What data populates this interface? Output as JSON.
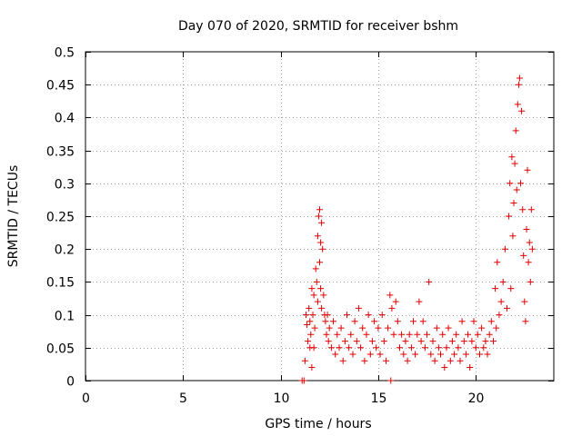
{
  "chart_data": {
    "type": "scatter",
    "title": "Day 070 of 2020, SRMTID for receiver bshm",
    "xlabel": "GPS time / hours",
    "ylabel": "SRMTID / TECUs",
    "xlim": [
      0,
      24
    ],
    "ylim": [
      0,
      0.5
    ],
    "xticks": [
      0,
      5,
      10,
      15,
      20
    ],
    "yticks": [
      0,
      0.05,
      0.1,
      0.15,
      0.2,
      0.25,
      0.3,
      0.35,
      0.4,
      0.45,
      0.5
    ],
    "xtick_labels": [
      "0",
      "5",
      "10",
      "15",
      "20"
    ],
    "ytick_labels": [
      "0",
      "0.05",
      "0.1",
      "0.15",
      "0.2",
      "0.25",
      "0.3",
      "0.35",
      "0.4",
      "0.45",
      "0.5"
    ],
    "grid": true,
    "marker": "+",
    "marker_color": "#e00000",
    "series": [
      {
        "name": "SRMTID",
        "points": [
          [
            11.1,
            0.0
          ],
          [
            11.2,
            0.0
          ],
          [
            11.25,
            0.03
          ],
          [
            11.3,
            0.1
          ],
          [
            11.35,
            0.085
          ],
          [
            11.4,
            0.06
          ],
          [
            11.45,
            0.11
          ],
          [
            11.5,
            0.05
          ],
          [
            11.5,
            0.09
          ],
          [
            11.55,
            0.07
          ],
          [
            11.6,
            0.14
          ],
          [
            11.6,
            0.02
          ],
          [
            11.65,
            0.1
          ],
          [
            11.7,
            0.05
          ],
          [
            11.7,
            0.13
          ],
          [
            11.75,
            0.08
          ],
          [
            11.8,
            0.17
          ],
          [
            11.85,
            0.15
          ],
          [
            11.9,
            0.22
          ],
          [
            11.9,
            0.12
          ],
          [
            11.95,
            0.25
          ],
          [
            12.0,
            0.26
          ],
          [
            12.0,
            0.18
          ],
          [
            12.05,
            0.21
          ],
          [
            12.05,
            0.14
          ],
          [
            12.1,
            0.24
          ],
          [
            12.1,
            0.11
          ],
          [
            12.15,
            0.2
          ],
          [
            12.2,
            0.13
          ],
          [
            12.25,
            0.1
          ],
          [
            12.3,
            0.09
          ],
          [
            12.35,
            0.07
          ],
          [
            12.4,
            0.1
          ],
          [
            12.45,
            0.06
          ],
          [
            12.5,
            0.08
          ],
          [
            12.6,
            0.05
          ],
          [
            12.7,
            0.09
          ],
          [
            12.8,
            0.04
          ],
          [
            12.9,
            0.07
          ],
          [
            13.0,
            0.05
          ],
          [
            13.1,
            0.08
          ],
          [
            13.2,
            0.03
          ],
          [
            13.3,
            0.06
          ],
          [
            13.4,
            0.1
          ],
          [
            13.5,
            0.05
          ],
          [
            13.6,
            0.07
          ],
          [
            13.7,
            0.04
          ],
          [
            13.8,
            0.09
          ],
          [
            13.9,
            0.06
          ],
          [
            14.0,
            0.11
          ],
          [
            14.1,
            0.05
          ],
          [
            14.2,
            0.08
          ],
          [
            14.3,
            0.03
          ],
          [
            14.4,
            0.07
          ],
          [
            14.5,
            0.1
          ],
          [
            14.6,
            0.04
          ],
          [
            14.7,
            0.06
          ],
          [
            14.8,
            0.09
          ],
          [
            14.9,
            0.05
          ],
          [
            15.0,
            0.08
          ],
          [
            15.1,
            0.04
          ],
          [
            15.2,
            0.1
          ],
          [
            15.3,
            0.06
          ],
          [
            15.4,
            0.03
          ],
          [
            15.5,
            0.08
          ],
          [
            15.6,
            0.13
          ],
          [
            15.65,
            0.0
          ],
          [
            15.7,
            0.11
          ],
          [
            15.8,
            0.07
          ],
          [
            15.9,
            0.12
          ],
          [
            16.0,
            0.09
          ],
          [
            16.1,
            0.05
          ],
          [
            16.2,
            0.07
          ],
          [
            16.3,
            0.04
          ],
          [
            16.4,
            0.06
          ],
          [
            16.5,
            0.03
          ],
          [
            16.6,
            0.07
          ],
          [
            16.7,
            0.05
          ],
          [
            16.8,
            0.09
          ],
          [
            16.9,
            0.04
          ],
          [
            17.0,
            0.07
          ],
          [
            17.1,
            0.12
          ],
          [
            17.2,
            0.06
          ],
          [
            17.3,
            0.09
          ],
          [
            17.4,
            0.05
          ],
          [
            17.5,
            0.07
          ],
          [
            17.6,
            0.15
          ],
          [
            17.7,
            0.04
          ],
          [
            17.8,
            0.06
          ],
          [
            17.9,
            0.03
          ],
          [
            18.0,
            0.08
          ],
          [
            18.1,
            0.05
          ],
          [
            18.2,
            0.04
          ],
          [
            18.3,
            0.07
          ],
          [
            18.4,
            0.02
          ],
          [
            18.5,
            0.05
          ],
          [
            18.6,
            0.08
          ],
          [
            18.7,
            0.03
          ],
          [
            18.8,
            0.06
          ],
          [
            18.9,
            0.04
          ],
          [
            19.0,
            0.07
          ],
          [
            19.1,
            0.05
          ],
          [
            19.2,
            0.03
          ],
          [
            19.3,
            0.09
          ],
          [
            19.4,
            0.06
          ],
          [
            19.5,
            0.04
          ],
          [
            19.6,
            0.07
          ],
          [
            19.7,
            0.02
          ],
          [
            19.8,
            0.06
          ],
          [
            19.9,
            0.09
          ],
          [
            20.0,
            0.05
          ],
          [
            20.1,
            0.07
          ],
          [
            20.2,
            0.04
          ],
          [
            20.3,
            0.08
          ],
          [
            20.4,
            0.05
          ],
          [
            20.5,
            0.06
          ],
          [
            20.6,
            0.04
          ],
          [
            20.7,
            0.07
          ],
          [
            20.8,
            0.09
          ],
          [
            20.9,
            0.06
          ],
          [
            21.0,
            0.14
          ],
          [
            21.05,
            0.08
          ],
          [
            21.1,
            0.18
          ],
          [
            21.2,
            0.1
          ],
          [
            21.3,
            0.12
          ],
          [
            21.4,
            0.15
          ],
          [
            21.5,
            0.2
          ],
          [
            21.6,
            0.11
          ],
          [
            21.7,
            0.25
          ],
          [
            21.75,
            0.3
          ],
          [
            21.8,
            0.14
          ],
          [
            21.85,
            0.34
          ],
          [
            21.9,
            0.22
          ],
          [
            21.95,
            0.27
          ],
          [
            22.0,
            0.33
          ],
          [
            22.05,
            0.38
          ],
          [
            22.1,
            0.29
          ],
          [
            22.15,
            0.42
          ],
          [
            22.2,
            0.45
          ],
          [
            22.25,
            0.46
          ],
          [
            22.3,
            0.3
          ],
          [
            22.35,
            0.41
          ],
          [
            22.4,
            0.26
          ],
          [
            22.45,
            0.19
          ],
          [
            22.5,
            0.12
          ],
          [
            22.55,
            0.09
          ],
          [
            22.6,
            0.23
          ],
          [
            22.65,
            0.32
          ],
          [
            22.7,
            0.18
          ],
          [
            22.75,
            0.21
          ],
          [
            22.8,
            0.15
          ],
          [
            22.85,
            0.26
          ],
          [
            22.9,
            0.2
          ]
        ]
      }
    ]
  }
}
